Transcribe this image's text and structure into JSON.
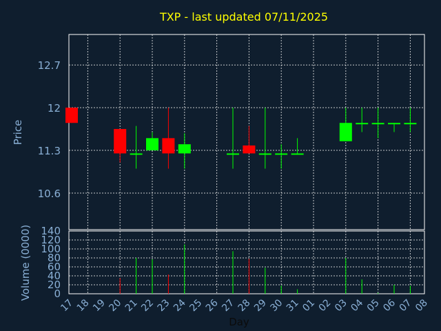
{
  "chart_data": {
    "title": "TXP - last updated 07/11/2025",
    "type": "candlestick",
    "price": {
      "ylabel": "Price",
      "ylim": [
        10.0,
        13.2
      ],
      "yticks": [
        "10.6",
        "11.3",
        "12",
        "12.7"
      ],
      "grid": true
    },
    "volume": {
      "ylabel": "Volume (0000)",
      "ylim": [
        0,
        140
      ],
      "yticks": [
        "0",
        "20",
        "40",
        "60",
        "80",
        "100",
        "120",
        "140"
      ],
      "grid": true
    },
    "xlabel": "Day",
    "x_tick_labels": [
      "17",
      "18",
      "19",
      "20",
      "21",
      "22",
      "23",
      "24",
      "25",
      "26",
      "27",
      "28",
      "29",
      "30",
      "31",
      "01",
      "02",
      "03",
      "04",
      "05",
      "06",
      "07",
      "08"
    ],
    "colors": {
      "up": "#00ff00",
      "down": "#ff0000",
      "background": "#0f1e2e",
      "title": "#ffff00",
      "axis_text": "#8ab0d6"
    },
    "candles": [
      {
        "x": "17",
        "open": 12.0,
        "high": 12.0,
        "low": 11.75,
        "close": 11.75,
        "volume": 0
      },
      {
        "x": "20",
        "open": 11.65,
        "high": 11.65,
        "low": 11.1,
        "close": 11.25,
        "volume": 35
      },
      {
        "x": "21",
        "open": 11.25,
        "high": 11.7,
        "low": 11.0,
        "close": 11.25,
        "volume": 80
      },
      {
        "x": "22",
        "open": 11.3,
        "high": 11.6,
        "low": 11.3,
        "close": 11.5,
        "volume": 77
      },
      {
        "x": "23",
        "open": 11.5,
        "high": 12.0,
        "low": 11.0,
        "close": 11.25,
        "volume": 43
      },
      {
        "x": "24",
        "open": 11.25,
        "high": 11.58,
        "low": 11.0,
        "close": 11.4,
        "volume": 110
      },
      {
        "x": "27",
        "open": 11.25,
        "high": 12.0,
        "low": 11.0,
        "close": 11.25,
        "volume": 95
      },
      {
        "x": "28",
        "open": 11.38,
        "high": 11.7,
        "low": 11.25,
        "close": 11.25,
        "volume": 78
      },
      {
        "x": "29",
        "open": 11.25,
        "high": 12.0,
        "low": 11.0,
        "close": 11.25,
        "volume": 58
      },
      {
        "x": "30",
        "open": 11.25,
        "high": 11.4,
        "low": 11.0,
        "close": 11.25,
        "volume": 18
      },
      {
        "x": "31",
        "open": 11.25,
        "high": 11.5,
        "low": 11.25,
        "close": 11.25,
        "volume": 10
      },
      {
        "x": "03",
        "open": 11.45,
        "high": 12.0,
        "low": 11.45,
        "close": 11.75,
        "volume": 80
      },
      {
        "x": "04",
        "open": 11.75,
        "high": 12.0,
        "low": 11.6,
        "close": 11.75,
        "volume": 32
      },
      {
        "x": "05",
        "open": 11.75,
        "high": 12.0,
        "low": 11.5,
        "close": 11.75,
        "volume": 2
      },
      {
        "x": "06",
        "open": 11.75,
        "high": 11.75,
        "low": 11.6,
        "close": 11.75,
        "volume": 20
      },
      {
        "x": "07",
        "open": 11.75,
        "high": 12.0,
        "low": 11.6,
        "close": 11.75,
        "volume": 18
      }
    ]
  }
}
